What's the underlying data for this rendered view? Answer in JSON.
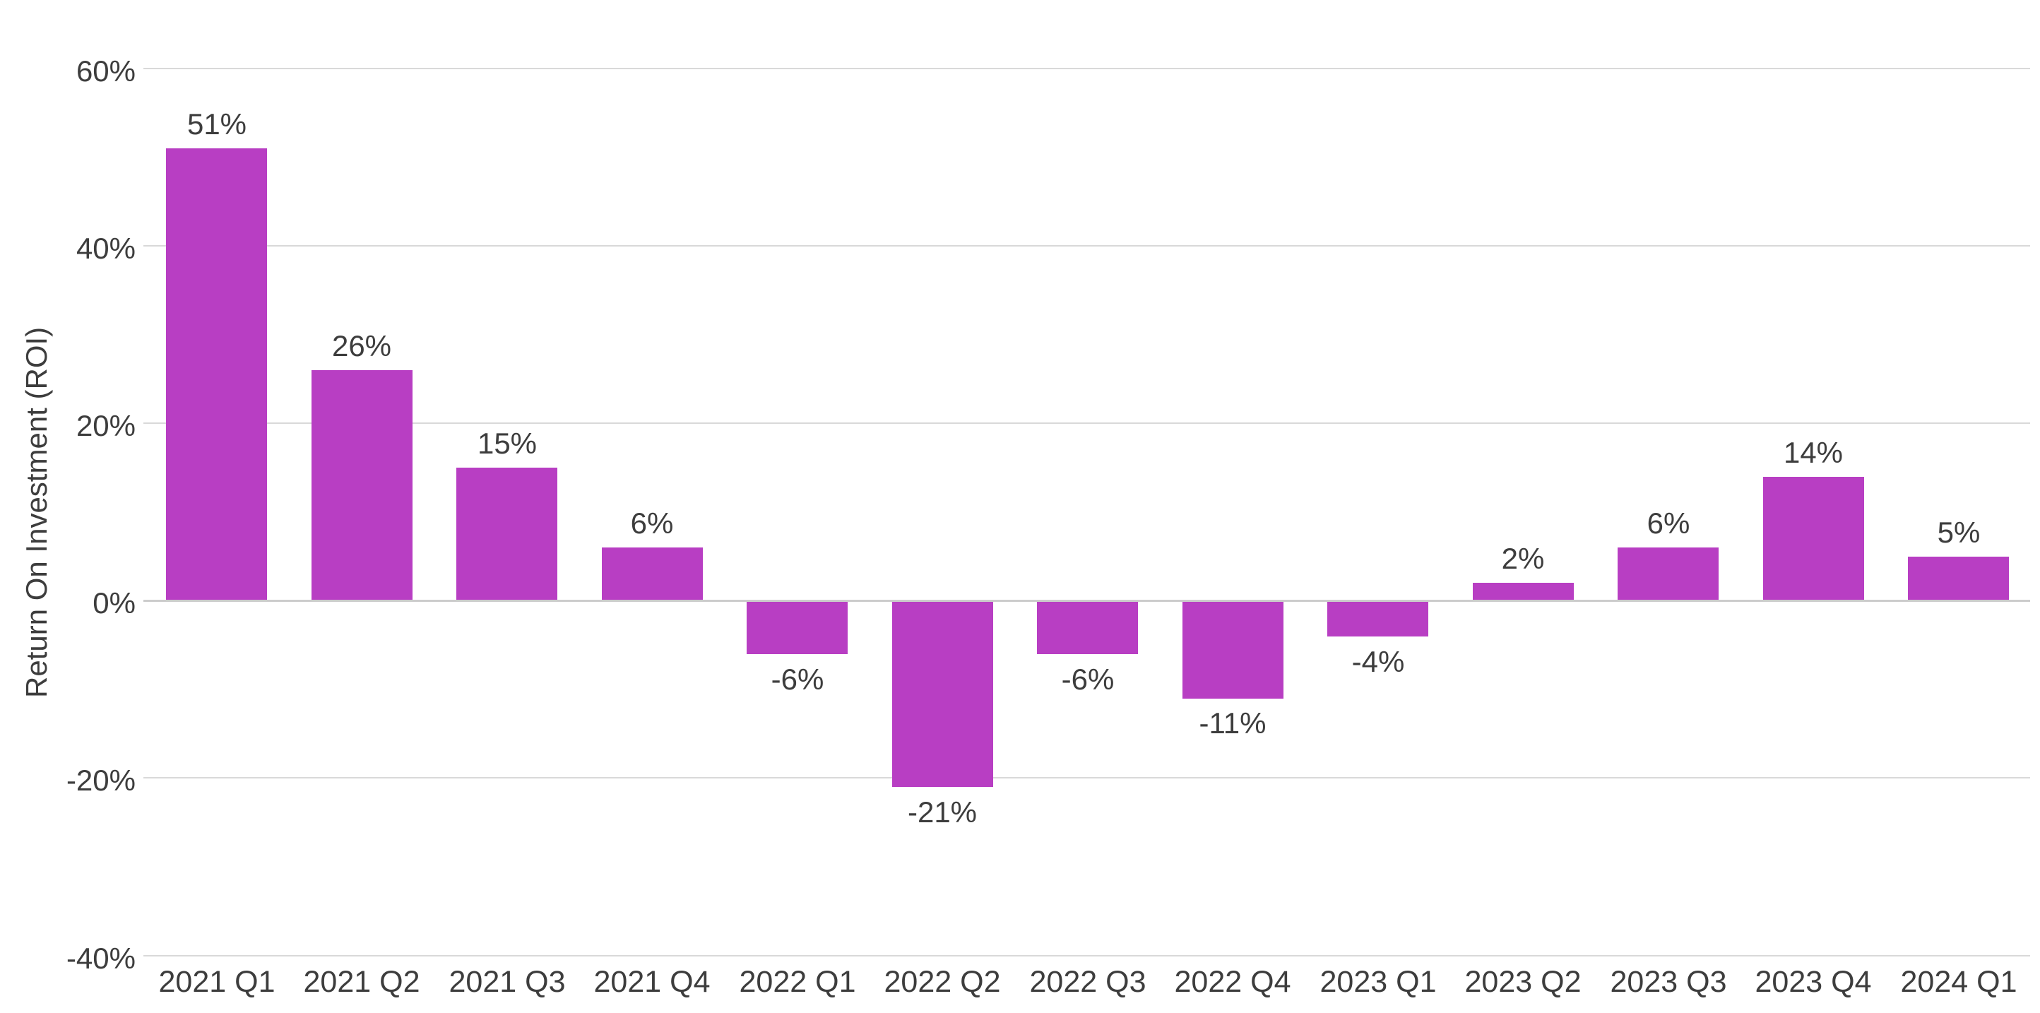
{
  "chart_data": {
    "type": "bar",
    "title": "",
    "xlabel": "",
    "ylabel": "Return On Investment (ROI)",
    "categories": [
      "2021 Q1",
      "2021 Q2",
      "2021 Q3",
      "2021 Q4",
      "2022 Q1",
      "2022 Q2",
      "2022 Q3",
      "2022 Q4",
      "2023 Q1",
      "2023 Q2",
      "2023 Q3",
      "2023 Q4",
      "2024 Q1"
    ],
    "values": [
      51,
      26,
      15,
      6,
      -6,
      -21,
      -6,
      -11,
      -4,
      2,
      6,
      14,
      5
    ],
    "data_labels": [
      "51%",
      "26%",
      "15%",
      "6%",
      "-6%",
      "-21%",
      "-6%",
      "-11%",
      "-4%",
      "2%",
      "6%",
      "14%",
      "5%"
    ],
    "ylim": [
      -40,
      60
    ],
    "ytick_values": [
      60,
      40,
      20,
      0,
      -20,
      -40
    ],
    "ytick_labels": [
      "60%",
      "40%",
      "20%",
      "0%",
      "-20%",
      "-40%"
    ],
    "grid": "horizontal",
    "legend": "none",
    "colors": {
      "bar": "#b83ec3",
      "text": "#3d3d3d",
      "gridline": "#d9d9d9",
      "zero_line": "#cccccc",
      "background": "#ffffff"
    }
  }
}
